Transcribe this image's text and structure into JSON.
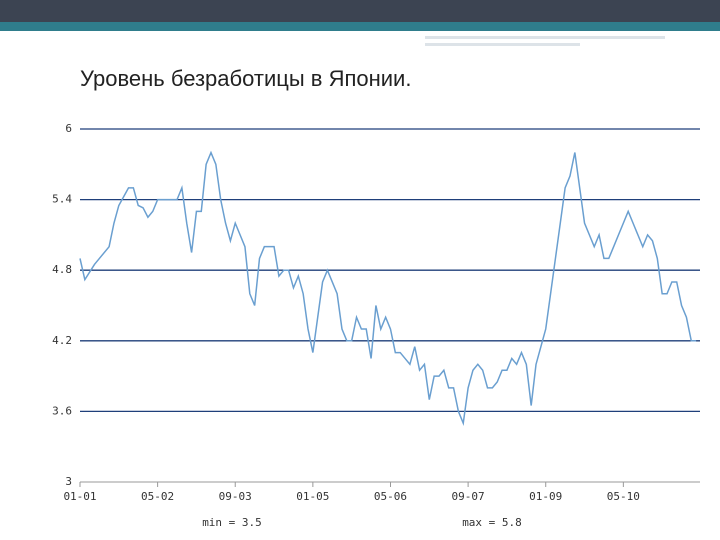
{
  "chart_data": {
    "type": "line",
    "title": "Уровень безработицы в Японии.",
    "x": [
      0,
      1,
      3,
      4,
      6,
      7,
      8,
      10,
      11,
      12,
      13,
      14,
      15,
      16,
      18,
      20,
      21,
      22,
      23,
      24,
      25,
      26,
      27,
      28,
      29,
      30,
      31,
      32,
      33,
      34,
      35,
      36,
      37,
      38,
      40,
      41,
      42,
      43,
      44,
      45,
      46,
      47,
      48,
      49,
      50,
      51,
      52,
      53,
      54,
      55,
      56,
      57,
      58,
      59,
      60,
      61,
      62,
      63,
      64,
      65,
      66,
      67,
      68,
      69,
      70,
      71,
      72,
      73,
      74,
      75,
      76,
      77,
      78,
      79,
      80,
      81,
      82,
      83,
      84,
      85,
      86,
      87,
      88,
      89,
      90,
      91,
      92,
      93,
      94,
      95,
      96,
      97,
      98,
      99,
      100,
      101,
      102,
      103,
      104,
      105,
      106,
      107,
      108,
      109,
      110,
      111,
      112,
      113,
      114,
      115,
      116,
      117,
      118,
      119,
      120,
      121,
      122,
      123,
      124,
      125,
      126,
      127
    ],
    "series": [
      {
        "name": "Уровень безработицы",
        "color": "#6a9fd0",
        "values": [
          4.9,
          4.72,
          4.85,
          4.9,
          5.0,
          5.2,
          5.35,
          5.5,
          5.5,
          5.35,
          5.33,
          5.25,
          5.3,
          5.4,
          5.4,
          5.4,
          5.5,
          5.2,
          4.95,
          5.3,
          5.3,
          5.7,
          5.8,
          5.7,
          5.4,
          5.2,
          5.05,
          5.2,
          5.1,
          5.0,
          4.6,
          4.5,
          4.9,
          5.0,
          5.0,
          4.75,
          4.8,
          4.8,
          4.65,
          4.75,
          4.6,
          4.3,
          4.1,
          4.4,
          4.7,
          4.8,
          4.7,
          4.6,
          4.3,
          4.2,
          4.2,
          4.4,
          4.3,
          4.3,
          4.05,
          4.5,
          4.3,
          4.4,
          4.3,
          4.1,
          4.1,
          4.05,
          4.0,
          4.15,
          3.95,
          4.0,
          3.7,
          3.9,
          3.9,
          3.95,
          3.8,
          3.8,
          3.6,
          3.5,
          3.8,
          3.95,
          4.0,
          3.95,
          3.8,
          3.8,
          3.85,
          3.95,
          3.95,
          4.05,
          4.0,
          4.1,
          4.0,
          3.65,
          4.0,
          4.15,
          4.3,
          4.6,
          4.9,
          5.2,
          5.5,
          5.6,
          5.8,
          5.5,
          5.2,
          5.1,
          5.0,
          5.1,
          4.9,
          4.9,
          5.0,
          5.1,
          5.2,
          5.3,
          5.2,
          5.1,
          5.0,
          5.1,
          5.05,
          4.9,
          4.6,
          4.6,
          4.7,
          4.7,
          4.5,
          4.4,
          4.2,
          4.2
        ]
      }
    ],
    "xlim": [
      0,
      127.8
    ],
    "xticks": [
      {
        "value": 0,
        "label": "01-01"
      },
      {
        "value": 16,
        "label": "05-02"
      },
      {
        "value": 32,
        "label": "09-03"
      },
      {
        "value": 48,
        "label": "01-05"
      },
      {
        "value": 64,
        "label": "05-06"
      },
      {
        "value": 80,
        "label": "09-07"
      },
      {
        "value": 96,
        "label": "01-09"
      },
      {
        "value": 112,
        "label": "05-10"
      }
    ],
    "ylim": [
      3,
      6
    ],
    "yticks": [
      3,
      3.6,
      4.2,
      4.8,
      5.4,
      6
    ],
    "grid": true,
    "grid_color": "#1f3f7a",
    "annotations": [
      "min = 3.5",
      "max = 5.8"
    ]
  }
}
